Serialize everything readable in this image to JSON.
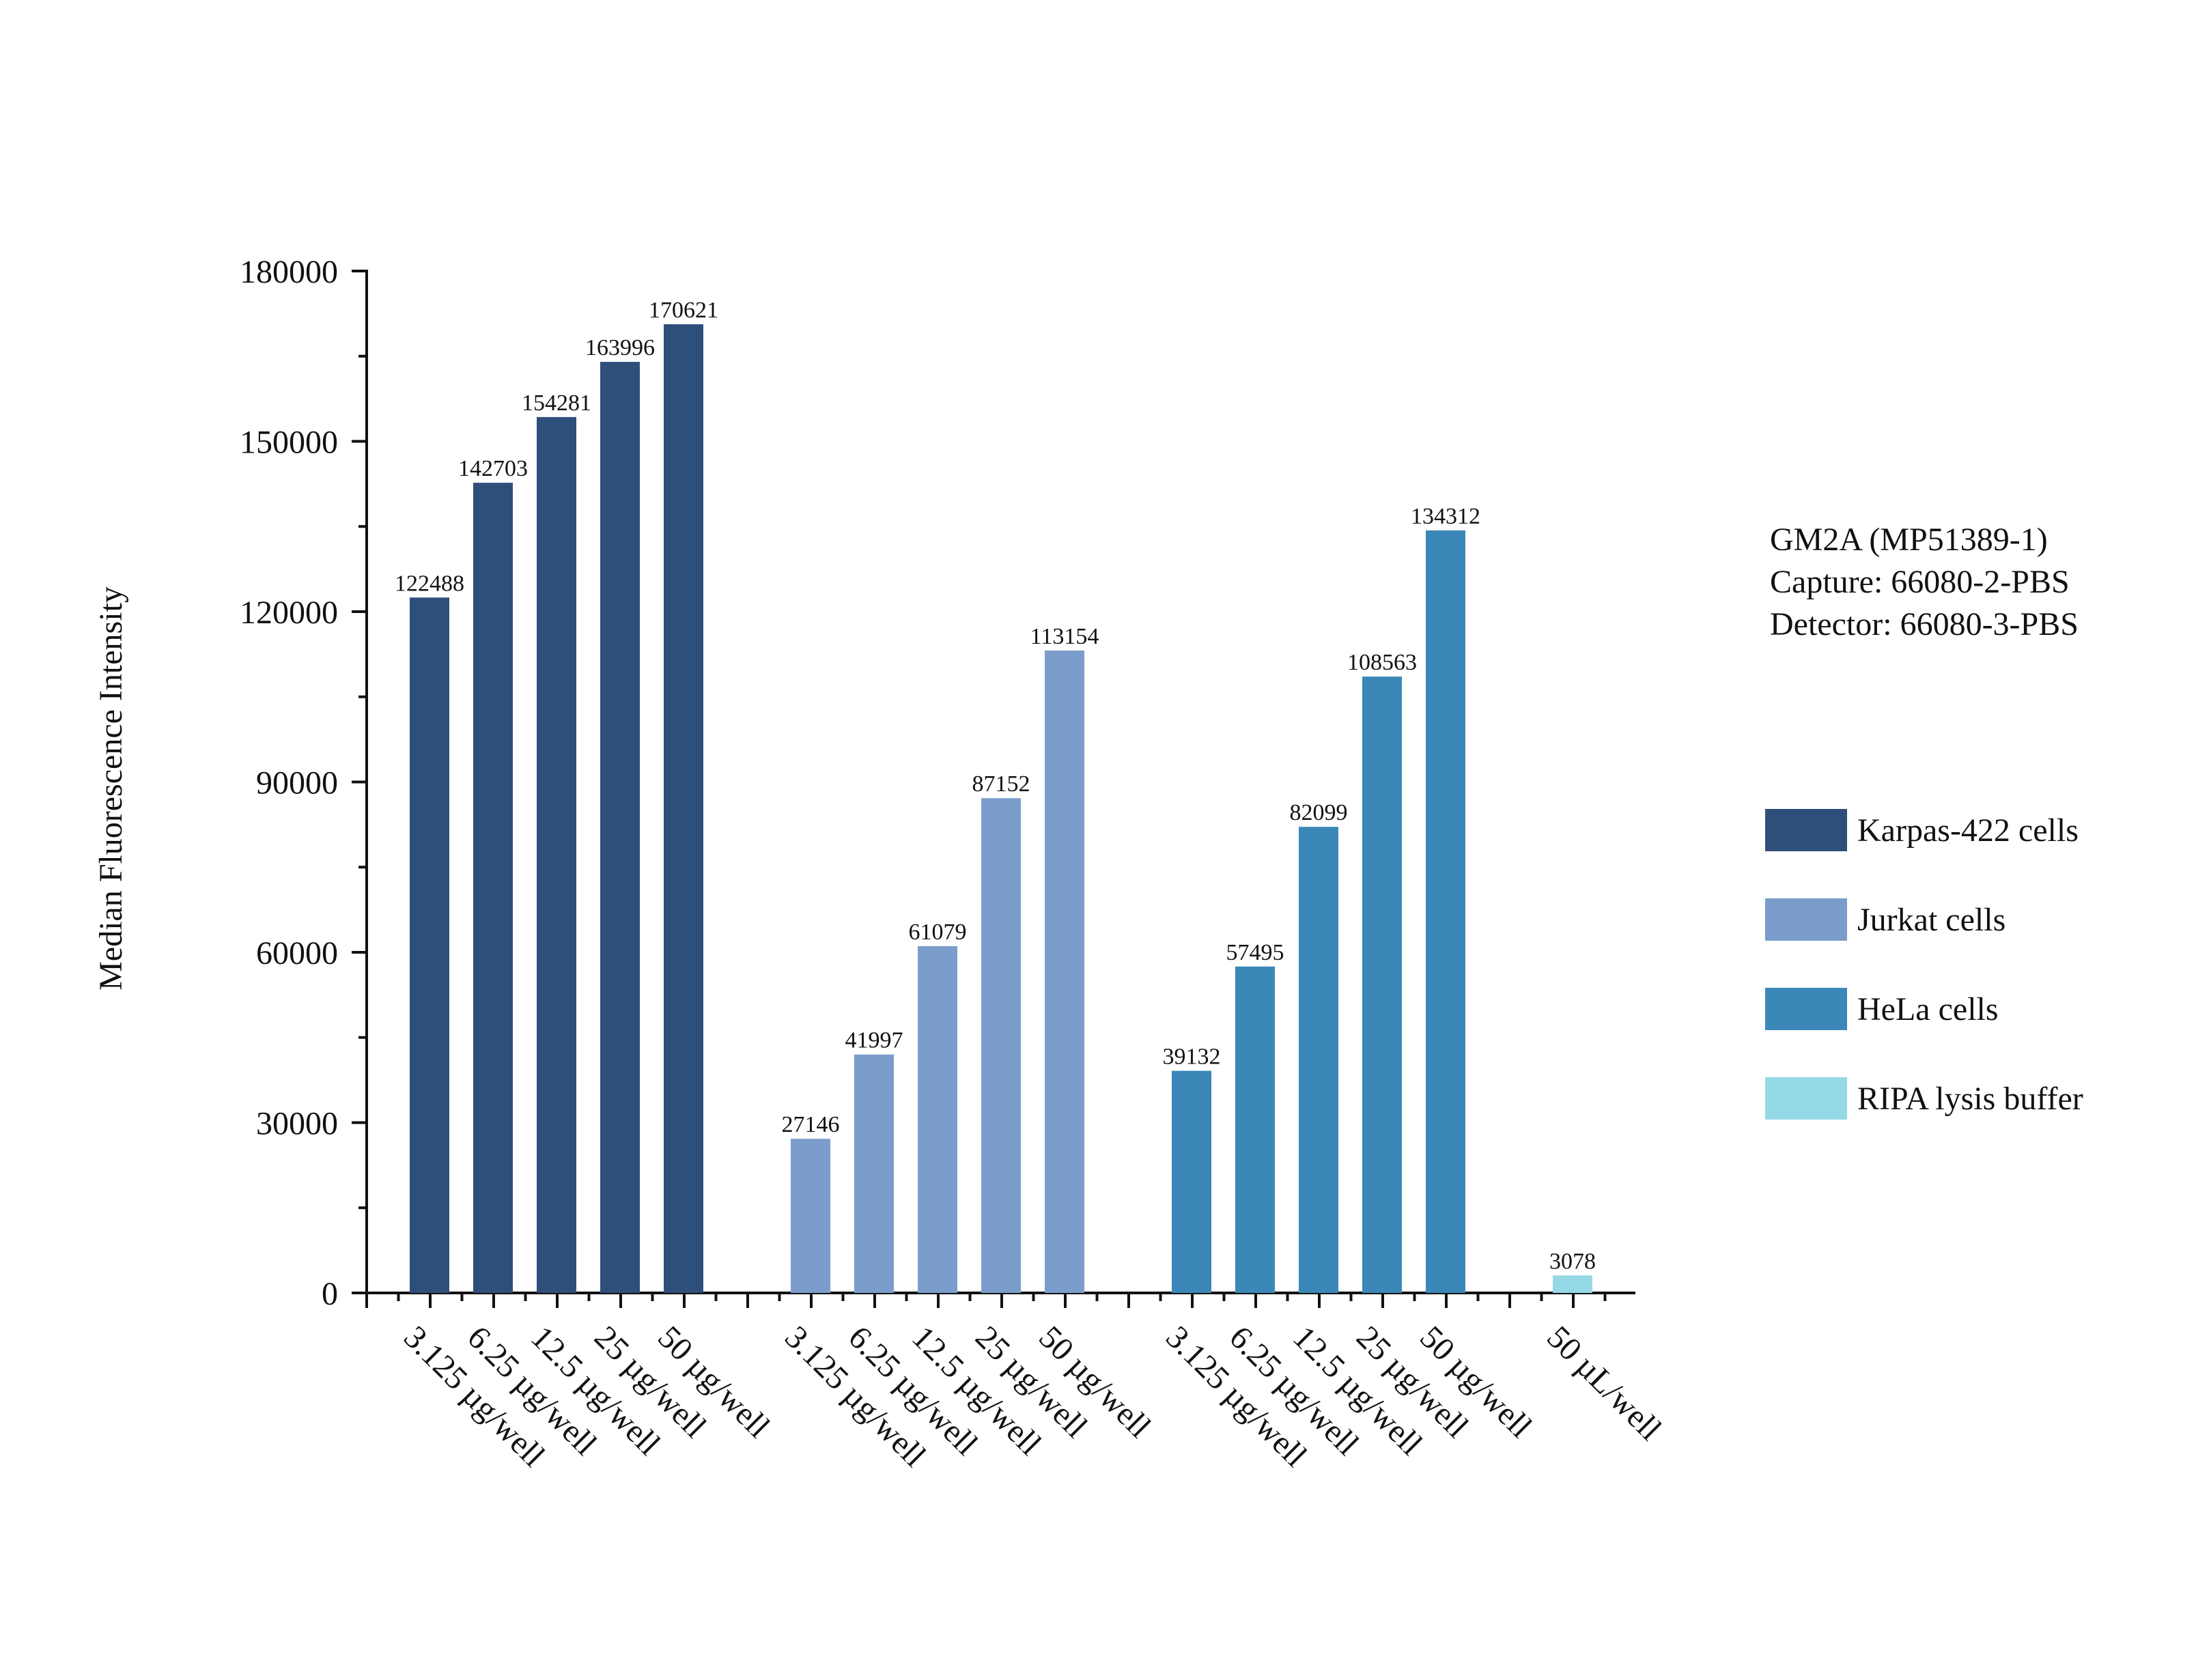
{
  "chart_data": {
    "type": "bar",
    "ylabel": "Median Fluorescence Intensity",
    "ylim": [
      0,
      180000
    ],
    "yticks": [
      0,
      30000,
      60000,
      90000,
      120000,
      150000,
      180000
    ],
    "ytick_labels": [
      "0",
      "30000",
      "60000",
      "90000",
      "120000",
      "150000",
      "180000"
    ],
    "categories": [
      "3.125 µg/well",
      "6.25 µg/well",
      "12.5 µg/well",
      "25 µg/well",
      "50 µg/well",
      "3.125 µg/well",
      "6.25 µg/well",
      "12.5 µg/well",
      "25 µg/well",
      "50 µg/well",
      "3.125 µg/well",
      "6.25 µg/well",
      "12.5 µg/well",
      "25 µg/well",
      "50 µg/well",
      "50 µL/well"
    ],
    "series": [
      {
        "name": "Karpas-422 cells",
        "color": "#2f4f7b",
        "positions": [
          0,
          1,
          2,
          3,
          4
        ],
        "values": [
          122488,
          142703,
          154281,
          163996,
          170621
        ]
      },
      {
        "name": "Jurkat cells",
        "color": "#7b9dcb",
        "positions": [
          6,
          7,
          8,
          9,
          10
        ],
        "values": [
          27146,
          41997,
          61079,
          87152,
          113154
        ]
      },
      {
        "name": "HeLa cells",
        "color": "#3b88b8",
        "positions": [
          12,
          13,
          14,
          15,
          16
        ],
        "values": [
          39132,
          57495,
          82099,
          108563,
          134312
        ]
      },
      {
        "name": "RIPA lysis buffer",
        "color": "#96d9e6",
        "positions": [
          18
        ],
        "values": [
          3078
        ]
      }
    ]
  },
  "info": {
    "line1": "GM2A (MP51389-1)",
    "line2": "Capture: 66080-2-PBS",
    "line3": "Detector: 66080-3-PBS"
  }
}
